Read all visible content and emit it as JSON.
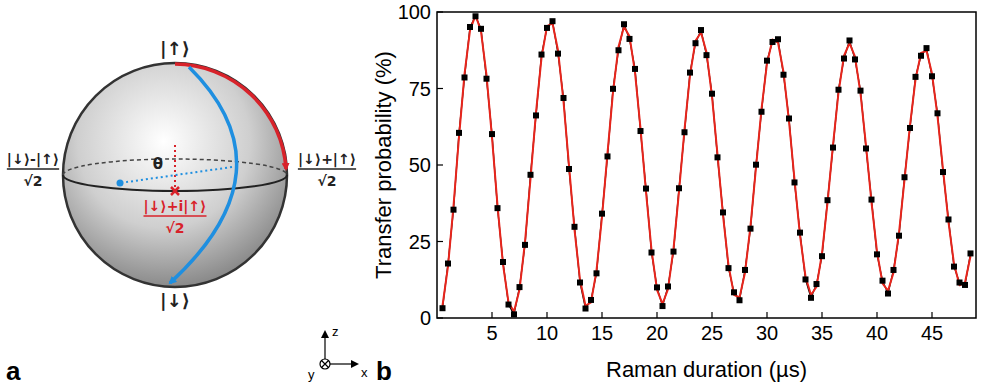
{
  "panel_labels": [
    "a",
    "b"
  ],
  "diagram": {
    "top_state": "|↑⟩",
    "bottom_state": "|↓⟩",
    "left_state": {
      "numerator": "|↓⟩-|↑⟩",
      "denominator": "√2"
    },
    "right_state": {
      "numerator": "|↓⟩+|↑⟩",
      "denominator": "√2"
    },
    "front_state": {
      "numerator": "|↓⟩+i|↑⟩",
      "denominator": "√2"
    },
    "angle": "θ",
    "axes": {
      "z": "z",
      "x": "x",
      "y": "y"
    }
  },
  "chart_data": {
    "type": "line",
    "x_label": "Raman duration (µs)",
    "y_label": "Transfer probability (%)",
    "xlim": [
      0,
      49
    ],
    "ylim": [
      0,
      100
    ],
    "xticks": [
      5,
      10,
      15,
      20,
      25,
      30,
      35,
      40,
      45
    ],
    "yticks": [
      0,
      25,
      50,
      75,
      100
    ],
    "grid": false,
    "x": [
      0.5,
      1,
      1.5,
      2,
      2.5,
      3,
      3.5,
      4,
      4.5,
      5,
      5.5,
      6,
      6.5,
      7,
      7.5,
      8,
      8.5,
      9,
      9.5,
      10,
      10.5,
      11,
      11.5,
      12,
      12.5,
      13,
      13.5,
      14,
      14.5,
      15,
      15.5,
      16,
      16.5,
      17,
      17.5,
      18,
      18.5,
      19,
      19.5,
      20,
      20.5,
      21,
      21.5,
      22,
      22.5,
      23,
      23.5,
      24,
      24.5,
      25,
      25.5,
      26,
      26.5,
      27,
      27.5,
      28,
      28.5,
      29,
      29.5,
      30,
      30.5,
      31,
      31.5,
      32,
      32.5,
      33,
      33.5,
      34,
      34.5,
      35,
      35.5,
      36,
      36.5,
      37,
      37.5,
      38,
      38.5,
      39,
      39.5,
      40,
      40.5,
      41,
      41.5,
      42,
      42.5,
      43,
      43.5,
      44,
      44.5,
      45,
      45.5,
      46,
      46.5,
      47,
      47.5,
      48,
      48.5
    ],
    "series": [
      {
        "type": "scatter",
        "color": "#000000",
        "marker": "square",
        "line_style": "solid",
        "values": [
          3.2,
          17.8,
          35.4,
          60.5,
          78.6,
          95.1,
          98.6,
          94.5,
          78.2,
          60.1,
          35.9,
          18.3,
          4.4,
          1.2,
          10.1,
          23.9,
          46.8,
          66.2,
          86.1,
          94.8,
          97.0,
          86.4,
          71.9,
          48.7,
          29.8,
          11.6,
          3.1,
          5.9,
          14.6,
          34.1,
          52.8,
          74.9,
          87.5,
          96.0,
          91.2,
          81.4,
          61.1,
          42.3,
          21.4,
          10.0,
          3.9,
          10.3,
          21.7,
          42.4,
          60.7,
          80.2,
          89.8,
          94.1,
          85.9,
          73.3,
          52.5,
          34.5,
          16.3,
          8.4,
          5.8,
          15.7,
          29.2,
          50.1,
          67.4,
          84.1,
          90.2,
          91.1,
          79.5,
          65.2,
          44.3,
          27.9,
          12.6,
          6.6,
          11.1,
          20.2,
          38.5,
          55.7,
          74.6,
          84.8,
          90.7,
          84.5,
          74.3,
          55.4,
          38.7,
          20.8,
          12.2,
          8.0,
          15.7,
          26.9,
          46.0,
          62.1,
          78.8,
          85.7,
          88.2,
          79.0,
          66.9,
          47.7,
          32.2,
          16.8,
          11.6,
          10.8,
          21.1
        ]
      },
      {
        "type": "line",
        "color": "#e8251c",
        "line_style": "solid",
        "values": [
          4.0,
          16.9,
          36.6,
          59.2,
          79.7,
          94.0,
          99.0,
          93.7,
          79.4,
          59.0,
          36.8,
          17.5,
          5.1,
          2.1,
          9.2,
          24.8,
          45.5,
          67.1,
          85.0,
          95.4,
          96.3,
          87.5,
          70.8,
          49.8,
          28.9,
          12.5,
          4.0,
          5.1,
          15.5,
          33.0,
          53.9,
          73.8,
          88.6,
          95.2,
          92.1,
          80.3,
          62.0,
          41.2,
          22.3,
          9.2,
          4.6,
          9.4,
          22.6,
          41.3,
          61.6,
          79.3,
          90.6,
          93.3,
          86.8,
          72.4,
          53.4,
          33.6,
          17.2,
          7.6,
          6.7,
          14.8,
          30.1,
          49.2,
          68.3,
          83.2,
          91.0,
          90.0,
          80.4,
          64.3,
          45.2,
          27.0,
          13.5,
          7.5,
          10.2,
          21.1,
          37.6,
          56.6,
          73.7,
          85.7,
          89.8,
          85.4,
          73.4,
          56.3,
          37.8,
          21.7,
          11.3,
          8.9,
          14.8,
          27.8,
          45.1,
          63.0,
          77.9,
          86.6,
          87.3,
          79.9,
          66.0,
          48.6,
          31.3,
          17.7,
          10.7,
          11.6,
          20.2
        ]
      }
    ]
  }
}
